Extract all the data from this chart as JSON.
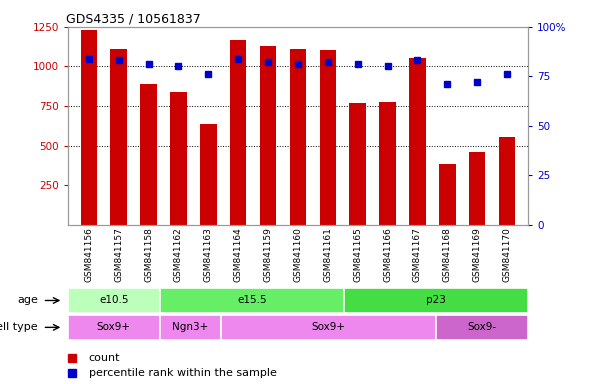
{
  "title": "GDS4335 / 10561837",
  "samples": [
    "GSM841156",
    "GSM841157",
    "GSM841158",
    "GSM841162",
    "GSM841163",
    "GSM841164",
    "GSM841159",
    "GSM841160",
    "GSM841161",
    "GSM841165",
    "GSM841166",
    "GSM841167",
    "GSM841168",
    "GSM841169",
    "GSM841170"
  ],
  "counts": [
    1230,
    1110,
    890,
    840,
    635,
    1165,
    1130,
    1110,
    1105,
    770,
    775,
    1055,
    385,
    460,
    555
  ],
  "percentiles": [
    84,
    83,
    81,
    80,
    76,
    84,
    82,
    81,
    82,
    81,
    80,
    83,
    71,
    72,
    76
  ],
  "ylim_left": [
    0,
    1250
  ],
  "ylim_right": [
    0,
    100
  ],
  "yticks_left": [
    250,
    500,
    750,
    1000,
    1250
  ],
  "yticks_right": [
    0,
    25,
    50,
    75,
    100
  ],
  "bar_color": "#cc0000",
  "dot_color": "#0000cc",
  "age_groups": [
    {
      "label": "e10.5",
      "start": 0,
      "end": 3,
      "color": "#bbffbb"
    },
    {
      "label": "e15.5",
      "start": 3,
      "end": 9,
      "color": "#66ee66"
    },
    {
      "label": "p23",
      "start": 9,
      "end": 15,
      "color": "#44dd44"
    }
  ],
  "cell_type_groups": [
    {
      "label": "Sox9+",
      "start": 0,
      "end": 3,
      "color": "#ee88ee"
    },
    {
      "label": "Ngn3+",
      "start": 3,
      "end": 5,
      "color": "#ee88ee"
    },
    {
      "label": "Sox9+",
      "start": 5,
      "end": 12,
      "color": "#ee88ee"
    },
    {
      "label": "Sox9-",
      "start": 12,
      "end": 15,
      "color": "#cc66cc"
    }
  ],
  "age_label": "age",
  "cell_type_label": "cell type",
  "legend_count_label": "count",
  "legend_pct_label": "percentile rank within the sample",
  "bg_color": "#ffffff",
  "label_bg_color": "#cccccc"
}
